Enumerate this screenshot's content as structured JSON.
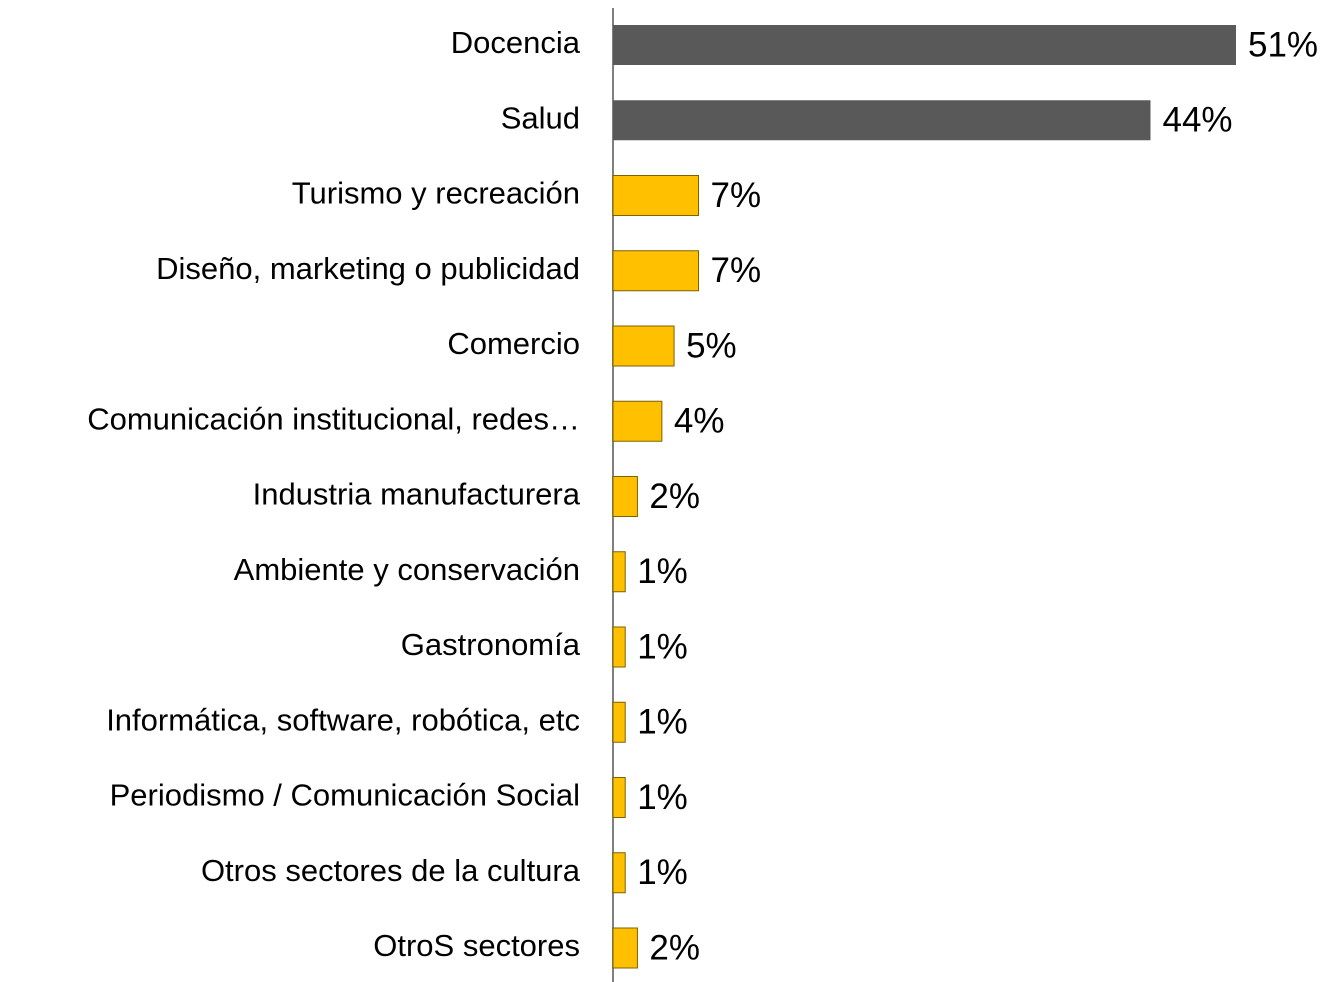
{
  "chart_data": {
    "type": "bar",
    "orientation": "horizontal",
    "categories": [
      "Docencia",
      "Salud",
      "Turismo y recreación",
      "Diseño, marketing o publicidad",
      "Comercio",
      "Comunicación institucional, redes…",
      "Industria manufacturera",
      "Ambiente y conservación",
      "Gastronomía",
      "Informática, software, robótica, etc",
      "Periodismo / Comunicación Social",
      "Otros sectores de la cultura",
      "OtroS sectores"
    ],
    "values": [
      51,
      44,
      7,
      7,
      5,
      4,
      2,
      1,
      1,
      1,
      1,
      1,
      2
    ],
    "value_labels": [
      "51%",
      "44%",
      "7%",
      "7%",
      "5%",
      "4%",
      "2%",
      "1%",
      "1%",
      "1%",
      "1%",
      "1%",
      "2%"
    ],
    "colors": [
      "#595959",
      "#595959",
      "#ffc000",
      "#ffc000",
      "#ffc000",
      "#ffc000",
      "#ffc000",
      "#ffc000",
      "#ffc000",
      "#ffc000",
      "#ffc000",
      "#ffc000",
      "#ffc000"
    ],
    "xlim": [
      0,
      51
    ]
  }
}
